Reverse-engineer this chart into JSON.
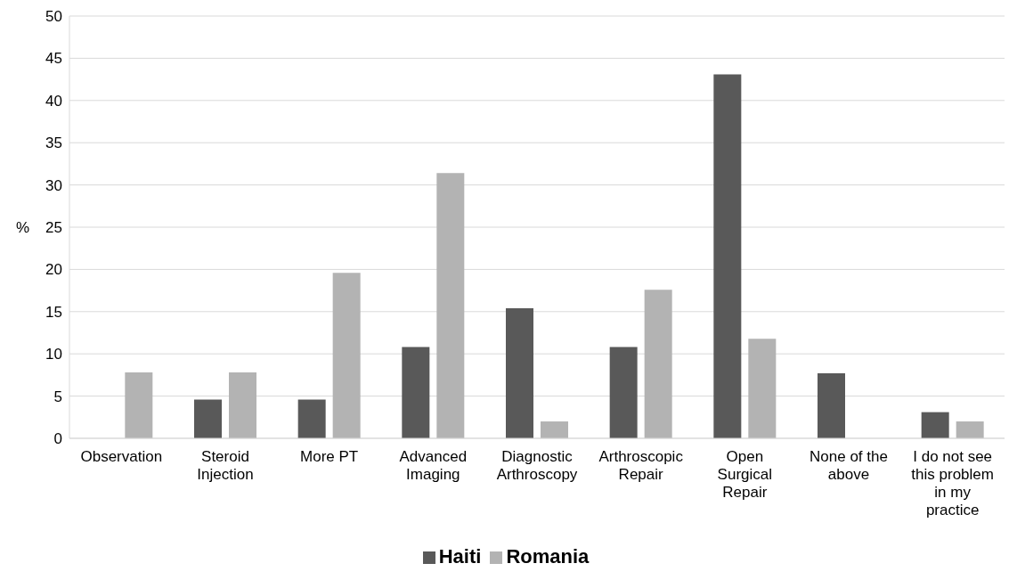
{
  "chart_data": {
    "type": "bar",
    "ylabel": "%",
    "categories": [
      "Observation",
      "Steroid Injection",
      "More PT",
      "Advanced Imaging",
      "Diagnostic Arthroscopy",
      "Arthroscopic Repair",
      "Open Surgical Repair",
      "None of the above",
      "I do not see this problem in my practice"
    ],
    "series": [
      {
        "name": "Haiti",
        "color": "#595959",
        "values": [
          0,
          4.6,
          4.6,
          10.8,
          15.4,
          10.8,
          43.1,
          7.7,
          3.1
        ]
      },
      {
        "name": "Romania",
        "color": "#b3b3b3",
        "values": [
          7.8,
          7.8,
          19.6,
          31.4,
          2.0,
          17.6,
          11.8,
          0,
          2.0
        ]
      }
    ],
    "ylim": [
      0,
      50
    ],
    "yticks": [
      0,
      5,
      10,
      15,
      20,
      25,
      30,
      35,
      40,
      45,
      50
    ],
    "grid": "y",
    "legend": "bottom"
  }
}
